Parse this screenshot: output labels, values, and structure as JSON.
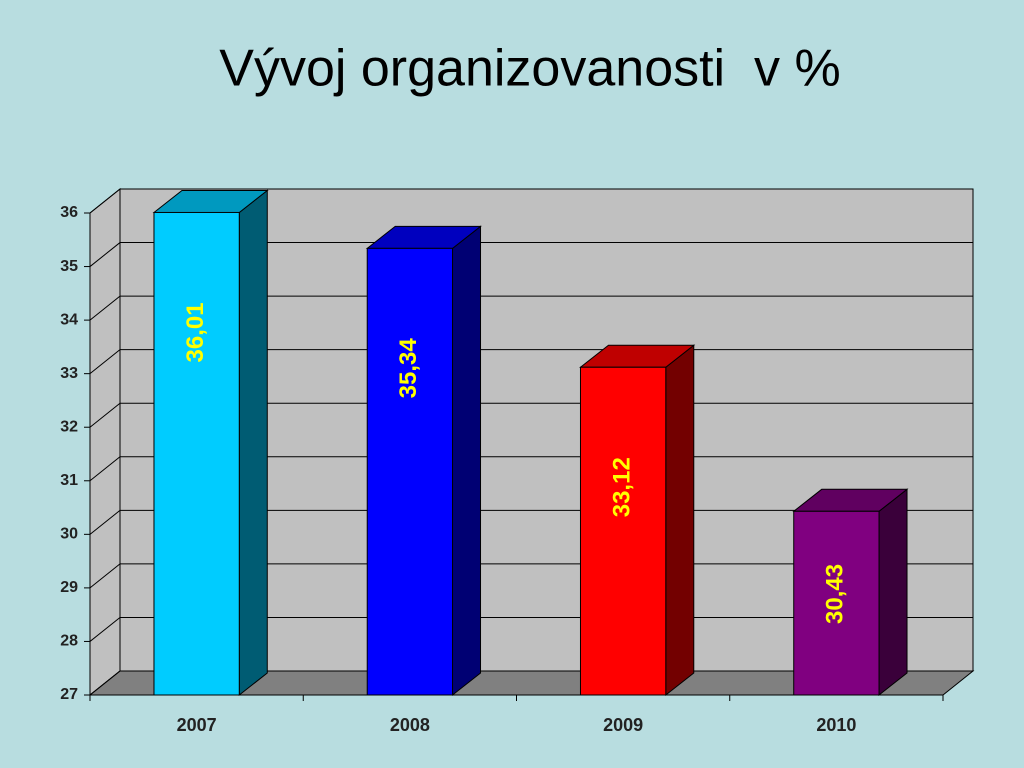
{
  "chart_data": {
    "type": "bar3d",
    "title": "Vývoj organizovanosti  v %",
    "categories": [
      "2007",
      "2008",
      "2009",
      "2010"
    ],
    "values": [
      36.01,
      35.34,
      33.12,
      30.43
    ],
    "value_labels": [
      "36,01",
      "35,34",
      "33,12",
      "30,43"
    ],
    "colors": [
      "#00ccff",
      "#0000ff",
      "#ff0000",
      "#800080"
    ],
    "ylim": [
      27,
      36
    ],
    "yticks": [
      27,
      28,
      29,
      30,
      31,
      32,
      33,
      34,
      35,
      36
    ],
    "grid": true
  }
}
